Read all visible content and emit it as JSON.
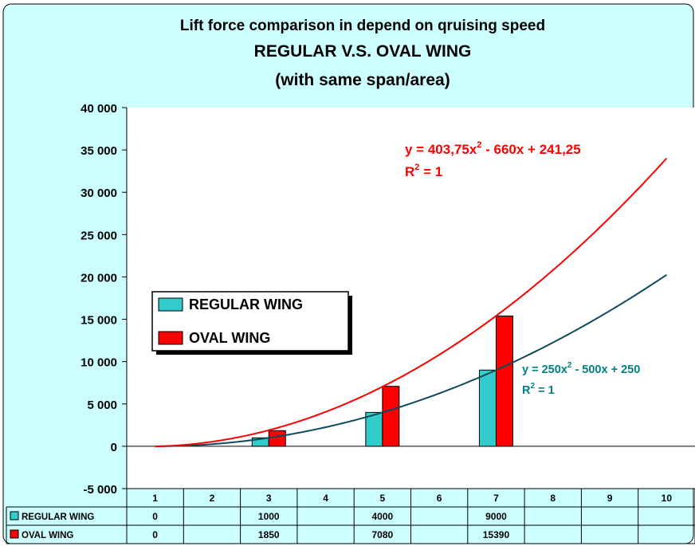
{
  "chart_data": {
    "type": "bar",
    "title_lines": [
      "Lift force comparison in depend on qruising speed",
      "REGULAR V.S. OVAL WING",
      "(with same span/area)"
    ],
    "categories": [
      "1",
      "2",
      "3",
      "4",
      "5",
      "6",
      "7",
      "8",
      "9",
      "10"
    ],
    "series": [
      {
        "name": "REGULAR WING",
        "color": "#33cccc",
        "values": [
          0,
          null,
          1000,
          null,
          4000,
          null,
          9000,
          null,
          null,
          null
        ],
        "table_values": [
          "0",
          "",
          "1000",
          "",
          "4000",
          "",
          "9000",
          "",
          "",
          ""
        ]
      },
      {
        "name": "OVAL WING",
        "color": "#ff0000",
        "values": [
          0,
          null,
          1850,
          null,
          7080,
          null,
          15390,
          null,
          null,
          null
        ],
        "table_values": [
          "0",
          "",
          "1850",
          "",
          "7080",
          "",
          "15390",
          "",
          "",
          ""
        ]
      }
    ],
    "trendlines": [
      {
        "series": "REGULAR WING",
        "color": "#0e4a5a",
        "label_color": "#008080",
        "a": 250,
        "b": -500,
        "c": 250,
        "equation_parts": [
          "y = 250x",
          "2",
          " - 500x + 250"
        ],
        "r2_parts": [
          "R",
          "2",
          " = 1"
        ]
      },
      {
        "series": "OVAL WING",
        "color": "#ff0000",
        "label_color": "#ff0000",
        "a": 403.75,
        "b": -660,
        "c": 241.25,
        "equation_parts": [
          "y = 403,75x",
          "2",
          " - 660x + 241,25"
        ],
        "r2_parts": [
          "R",
          "2",
          " = 1"
        ]
      }
    ],
    "ylim": [
      -5000,
      40000
    ],
    "yticks": [
      40000,
      35000,
      30000,
      25000,
      20000,
      15000,
      10000,
      5000,
      0,
      -5000
    ],
    "ytick_labels": [
      "40 000",
      "35 000",
      "30 000",
      "25 000",
      "20 000",
      "15 000",
      "10 000",
      "5 000",
      "0",
      "-5 000"
    ],
    "plot_background": "#ffffff",
    "chart_background": "#ccffff",
    "legend_position": "center-left",
    "data_table": true,
    "grid": false
  }
}
